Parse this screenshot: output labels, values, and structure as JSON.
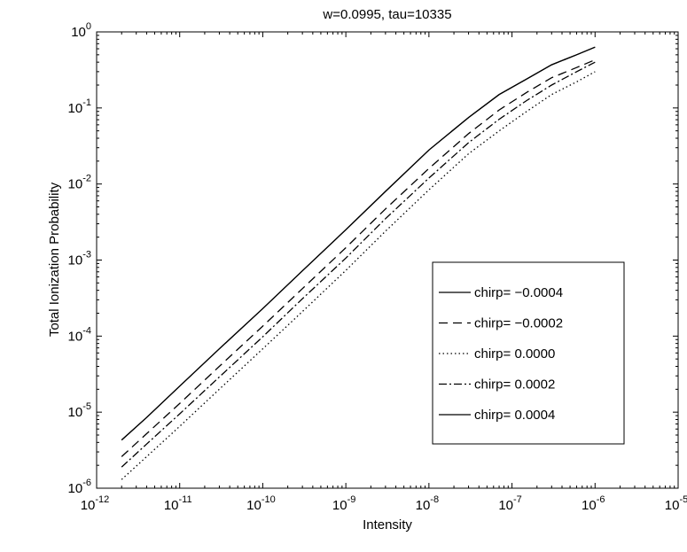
{
  "chart_data": {
    "type": "line",
    "title": "w=0.0995, tau=10335",
    "xlabel": "Intensity",
    "ylabel": "Total Ionization Probability",
    "xscale": "log",
    "yscale": "log",
    "xlim": [
      1e-12,
      1e-05
    ],
    "ylim": [
      1e-06,
      1
    ],
    "grid": false,
    "legend_position": "lower-right",
    "x_ticks": [
      {
        "base": "10",
        "exp": "-12"
      },
      {
        "base": "10",
        "exp": "-11"
      },
      {
        "base": "10",
        "exp": "-10"
      },
      {
        "base": "10",
        "exp": "-9"
      },
      {
        "base": "10",
        "exp": "-8"
      },
      {
        "base": "10",
        "exp": "-7"
      },
      {
        "base": "10",
        "exp": "-6"
      },
      {
        "base": "10",
        "exp": "-5"
      }
    ],
    "y_ticks": [
      {
        "base": "10",
        "exp": "-6"
      },
      {
        "base": "10",
        "exp": "-5"
      },
      {
        "base": "10",
        "exp": "-4"
      },
      {
        "base": "10",
        "exp": "-3"
      },
      {
        "base": "10",
        "exp": "-2"
      },
      {
        "base": "10",
        "exp": "-1"
      },
      {
        "base": "10",
        "exp": "0"
      }
    ],
    "x": [
      2e-12,
      4e-12,
      1e-11,
      3e-11,
      1e-10,
      3e-10,
      1e-09,
      3e-09,
      1e-08,
      3e-08,
      7e-08,
      1.5e-07,
      3e-07,
      6e-07,
      1e-06
    ],
    "series": [
      {
        "name": "chirp= −0.0004",
        "dash": "solid",
        "values": [
          4.3e-06,
          8.5e-06,
          2.2e-05,
          6.8e-05,
          0.00023,
          0.00072,
          0.0025,
          0.008,
          0.028,
          0.075,
          0.15,
          0.24,
          0.37,
          0.5,
          0.63
        ]
      },
      {
        "name": "chirp= −0.0002",
        "dash": "dashed",
        "values": [
          2.6e-06,
          5.2e-06,
          1.3e-05,
          4e-05,
          0.000135,
          0.00042,
          0.00145,
          0.0047,
          0.016,
          0.046,
          0.094,
          0.16,
          0.25,
          0.34,
          0.43
        ]
      },
      {
        "name": "chirp=  0.0000",
        "dash": "dotted",
        "values": [
          1.3e-06,
          2.6e-06,
          6.5e-06,
          2e-05,
          6.8e-05,
          0.00021,
          0.00073,
          0.0024,
          0.0084,
          0.025,
          0.05,
          0.09,
          0.15,
          0.22,
          0.3
        ]
      },
      {
        "name": "chirp=  0.0002",
        "dash": "dashdot",
        "values": [
          1.9e-06,
          3.8e-06,
          9.5e-06,
          2.9e-05,
          9.8e-05,
          0.00031,
          0.00106,
          0.0035,
          0.012,
          0.035,
          0.071,
          0.125,
          0.2,
          0.3,
          0.4
        ]
      },
      {
        "name": "chirp=  0.0004",
        "dash": "solid",
        "values": [
          4.3e-06,
          8.5e-06,
          2.2e-05,
          6.8e-05,
          0.00023,
          0.00072,
          0.0025,
          0.008,
          0.028,
          0.075,
          0.15,
          0.24,
          0.37,
          0.5,
          0.63
        ]
      }
    ]
  }
}
